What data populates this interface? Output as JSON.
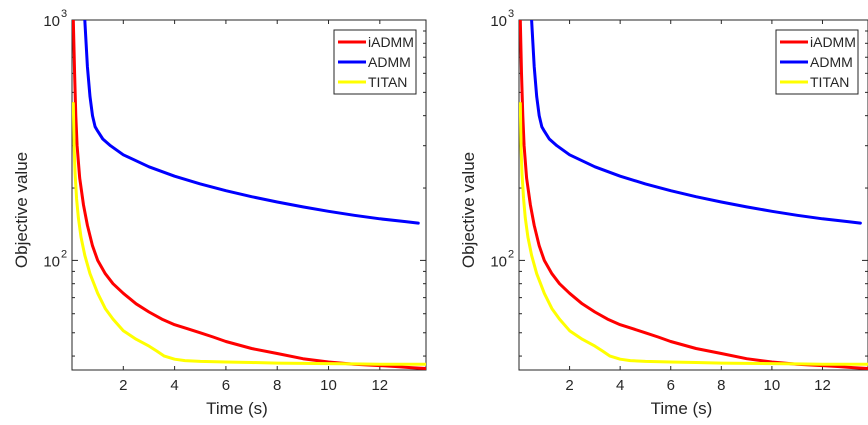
{
  "chart_data": [
    {
      "type": "line",
      "xlabel": "Time (s)",
      "ylabel": "Objective value",
      "yscale": "log",
      "xlim": [
        0,
        13.8
      ],
      "ylim": [
        35,
        1000
      ],
      "xticks": [
        2,
        4,
        6,
        8,
        10,
        12
      ],
      "xtick_labels": [
        "2",
        "4",
        "6",
        "8",
        "10",
        "12"
      ],
      "yticks": [
        100,
        1000
      ],
      "ytick_labels": [
        {
          "base": "10",
          "exp": "2"
        },
        {
          "base": "10",
          "exp": "3"
        }
      ],
      "grid": false,
      "legend_position": "top-right",
      "series": [
        {
          "name": "iADMM",
          "color": "#ff0000",
          "x": [
            0.05,
            0.1,
            0.15,
            0.2,
            0.3,
            0.45,
            0.6,
            0.8,
            1.0,
            1.3,
            1.6,
            2.0,
            2.5,
            3.0,
            3.5,
            4.0,
            4.5,
            5.0,
            5.5,
            6.0,
            7.0,
            8.0,
            9.0,
            10.0,
            11.0,
            12.0,
            12.6,
            13.2,
            13.8
          ],
          "y": [
            1000,
            600,
            400,
            300,
            220,
            170,
            140,
            115,
            100,
            88,
            80,
            73,
            66,
            61,
            57,
            54,
            52,
            50,
            48,
            46,
            43,
            41,
            39,
            37.8,
            37,
            36.5,
            36.2,
            35.8,
            35.5
          ]
        },
        {
          "name": "ADMM",
          "color": "#0000ff",
          "x": [
            0.5,
            0.55,
            0.6,
            0.7,
            0.8,
            0.9,
            1.0,
            1.2,
            1.5,
            2.0,
            3.0,
            4.0,
            5.0,
            6.0,
            7.0,
            8.0,
            9.0,
            10.0,
            11.0,
            12.0,
            13.0,
            13.5
          ],
          "y": [
            1000,
            800,
            640,
            480,
            400,
            360,
            345,
            320,
            300,
            275,
            245,
            224,
            208,
            195,
            184,
            175,
            167,
            160,
            154,
            149,
            145,
            143
          ]
        },
        {
          "name": "TITAN",
          "color": "#ffff00",
          "x": [
            0.05,
            0.08,
            0.12,
            0.18,
            0.25,
            0.35,
            0.5,
            0.7,
            1.0,
            1.3,
            1.6,
            2.0,
            2.5,
            3.0,
            3.3,
            3.6,
            4.0,
            4.4,
            5.0,
            6.0,
            7.0,
            8.0,
            9.0,
            10.0,
            11.0,
            12.0,
            13.0,
            13.8
          ],
          "y": [
            450,
            300,
            230,
            180,
            150,
            125,
            105,
            88,
            73,
            63,
            57,
            51,
            47,
            44,
            42,
            40,
            38.8,
            38.3,
            38,
            37.8,
            37.6,
            37.4,
            37.3,
            37.2,
            37.1,
            37,
            37,
            37
          ]
        }
      ]
    },
    {
      "type": "line",
      "xlabel": "Time (s)",
      "ylabel": "Objective value",
      "yscale": "log",
      "xlim": [
        0,
        13.8
      ],
      "ylim": [
        35,
        1000
      ],
      "xticks": [
        2,
        4,
        6,
        8,
        10,
        12
      ],
      "xtick_labels": [
        "2",
        "4",
        "6",
        "8",
        "10",
        "12"
      ],
      "yticks": [
        100,
        1000
      ],
      "ytick_labels": [
        {
          "base": "10",
          "exp": "2"
        },
        {
          "base": "10",
          "exp": "3"
        }
      ],
      "grid": false,
      "legend_position": "top-right",
      "series": [
        {
          "name": "iADMM",
          "color": "#ff0000",
          "x": [
            0.05,
            0.1,
            0.15,
            0.2,
            0.3,
            0.45,
            0.6,
            0.8,
            1.0,
            1.3,
            1.6,
            2.0,
            2.5,
            3.0,
            3.5,
            4.0,
            4.5,
            5.0,
            5.5,
            6.0,
            7.0,
            8.0,
            9.0,
            10.0,
            11.0,
            12.0,
            12.6,
            13.2,
            13.8
          ],
          "y": [
            1000,
            600,
            400,
            300,
            220,
            170,
            140,
            115,
            100,
            88,
            80,
            73,
            66,
            61,
            57,
            54,
            52,
            50,
            48,
            46,
            43,
            41,
            39,
            37.8,
            37,
            36.5,
            36.2,
            35.8,
            35.5
          ]
        },
        {
          "name": "ADMM",
          "color": "#0000ff",
          "x": [
            0.5,
            0.55,
            0.6,
            0.7,
            0.8,
            0.9,
            1.0,
            1.2,
            1.5,
            2.0,
            3.0,
            4.0,
            5.0,
            6.0,
            7.0,
            8.0,
            9.0,
            10.0,
            11.0,
            12.0,
            13.0,
            13.5
          ],
          "y": [
            1000,
            800,
            640,
            480,
            400,
            360,
            345,
            320,
            300,
            275,
            245,
            224,
            208,
            195,
            184,
            175,
            167,
            160,
            154,
            149,
            145,
            143
          ]
        },
        {
          "name": "TITAN",
          "color": "#ffff00",
          "x": [
            0.05,
            0.08,
            0.12,
            0.18,
            0.25,
            0.35,
            0.5,
            0.7,
            1.0,
            1.3,
            1.6,
            2.0,
            2.5,
            3.0,
            3.3,
            3.6,
            4.0,
            4.4,
            5.0,
            6.0,
            7.0,
            8.0,
            9.0,
            10.0,
            11.0,
            12.0,
            13.0,
            13.8
          ],
          "y": [
            450,
            300,
            230,
            180,
            150,
            125,
            105,
            88,
            73,
            63,
            57,
            51,
            47,
            44,
            42,
            40,
            38.8,
            38.3,
            38,
            37.8,
            37.6,
            37.4,
            37.3,
            37.2,
            37.1,
            37,
            37,
            37
          ]
        }
      ]
    }
  ]
}
